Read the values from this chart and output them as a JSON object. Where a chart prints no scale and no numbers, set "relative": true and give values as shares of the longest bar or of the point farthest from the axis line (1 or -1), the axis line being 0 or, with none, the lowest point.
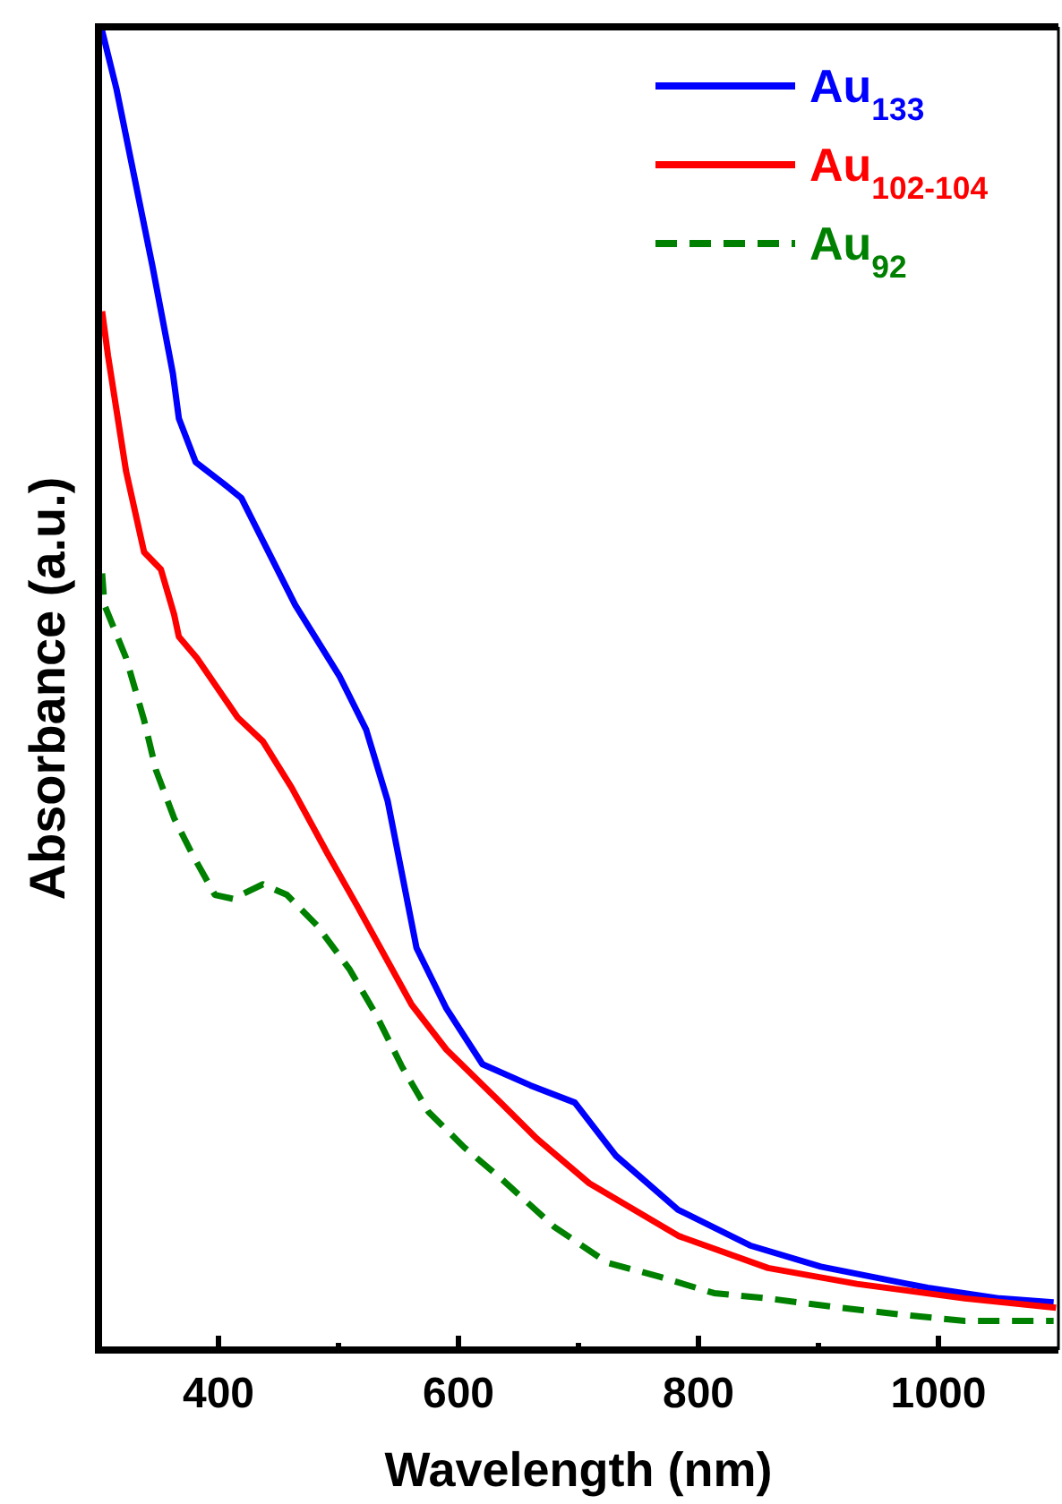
{
  "chart_data": {
    "type": "line",
    "relative": true,
    "xlabel": "Wavelength (nm)",
    "ylabel": "Absorbance (a.u.)",
    "xlim": [
      300,
      1100
    ],
    "xticks": [
      400,
      {
        "value": 500,
        "label": null
      },
      600,
      {
        "value": 700,
        "label": null
      },
      800,
      {
        "value": 900,
        "label": null
      },
      1000
    ],
    "legend": "top right",
    "grid": false,
    "series": [
      {
        "name": "Au$_{133}$",
        "color": "#0000ff",
        "line_style": "solid",
        "x": [
          300,
          303,
          315,
          330,
          345,
          362,
          367,
          381,
          404,
          419,
          434,
          464,
          501,
          523,
          541,
          565,
          590,
          620,
          660,
          697,
          731,
          783,
          843,
          902,
          991,
          1051,
          1096
        ],
        "values": [
          1.0,
          0.997,
          0.953,
          0.886,
          0.819,
          0.738,
          0.704,
          0.671,
          0.655,
          0.644,
          0.617,
          0.563,
          0.509,
          0.469,
          0.415,
          0.304,
          0.258,
          0.216,
          0.2,
          0.187,
          0.147,
          0.106,
          0.079,
          0.063,
          0.047,
          0.039,
          0.036
        ]
      },
      {
        "name": "Au$_{102-104}$",
        "color": "#ff0000",
        "line_style": "solid",
        "x": [
          303,
          308,
          323,
          338,
          352,
          363,
          367,
          382,
          416,
          437,
          461,
          491,
          516,
          561,
          590,
          635,
          665,
          709,
          784,
          858,
          932,
          1022,
          1098
        ],
        "values": [
          0.785,
          0.751,
          0.664,
          0.603,
          0.59,
          0.556,
          0.539,
          0.523,
          0.478,
          0.46,
          0.425,
          0.375,
          0.335,
          0.261,
          0.227,
          0.187,
          0.16,
          0.126,
          0.086,
          0.062,
          0.05,
          0.039,
          0.032
        ]
      },
      {
        "name": "Au$_{92}$",
        "color": "#008000",
        "line_style": "dashed",
        "x": [
          303,
          305,
          323,
          338,
          348,
          363,
          378,
          397,
          412,
          437,
          457,
          482,
          509,
          531,
          553,
          575,
          605,
          635,
          680,
          724,
          769,
          813,
          858,
          918,
          977,
          1022,
          1096
        ],
        "values": [
          0.587,
          0.563,
          0.523,
          0.476,
          0.438,
          0.402,
          0.375,
          0.344,
          0.341,
          0.352,
          0.344,
          0.321,
          0.288,
          0.254,
          0.214,
          0.18,
          0.153,
          0.13,
          0.093,
          0.066,
          0.055,
          0.043,
          0.039,
          0.032,
          0.026,
          0.022,
          0.022
        ]
      }
    ]
  }
}
